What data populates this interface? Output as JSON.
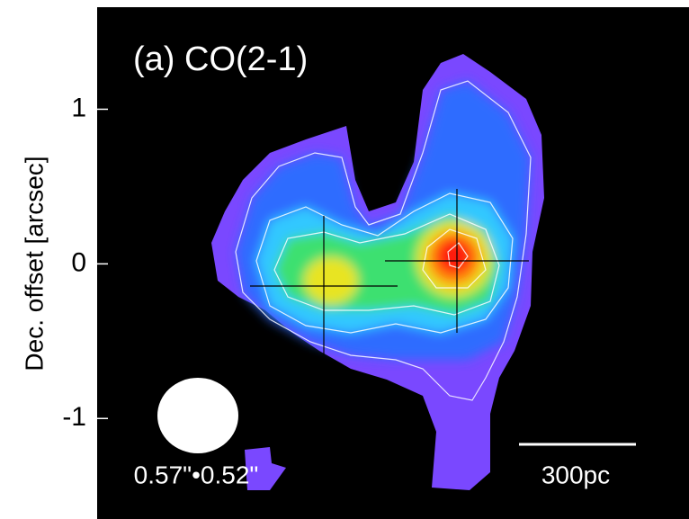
{
  "chart_data": {
    "type": "image",
    "title": "(a) CO(2-1)",
    "y_label": "Dec. offset [arcsec]",
    "ylim": [
      -1.65,
      1.66
    ],
    "yticks": [
      -1,
      0,
      1
    ],
    "beam_label": "0.57\"•0.52\"",
    "scale_label": "300pc"
  }
}
